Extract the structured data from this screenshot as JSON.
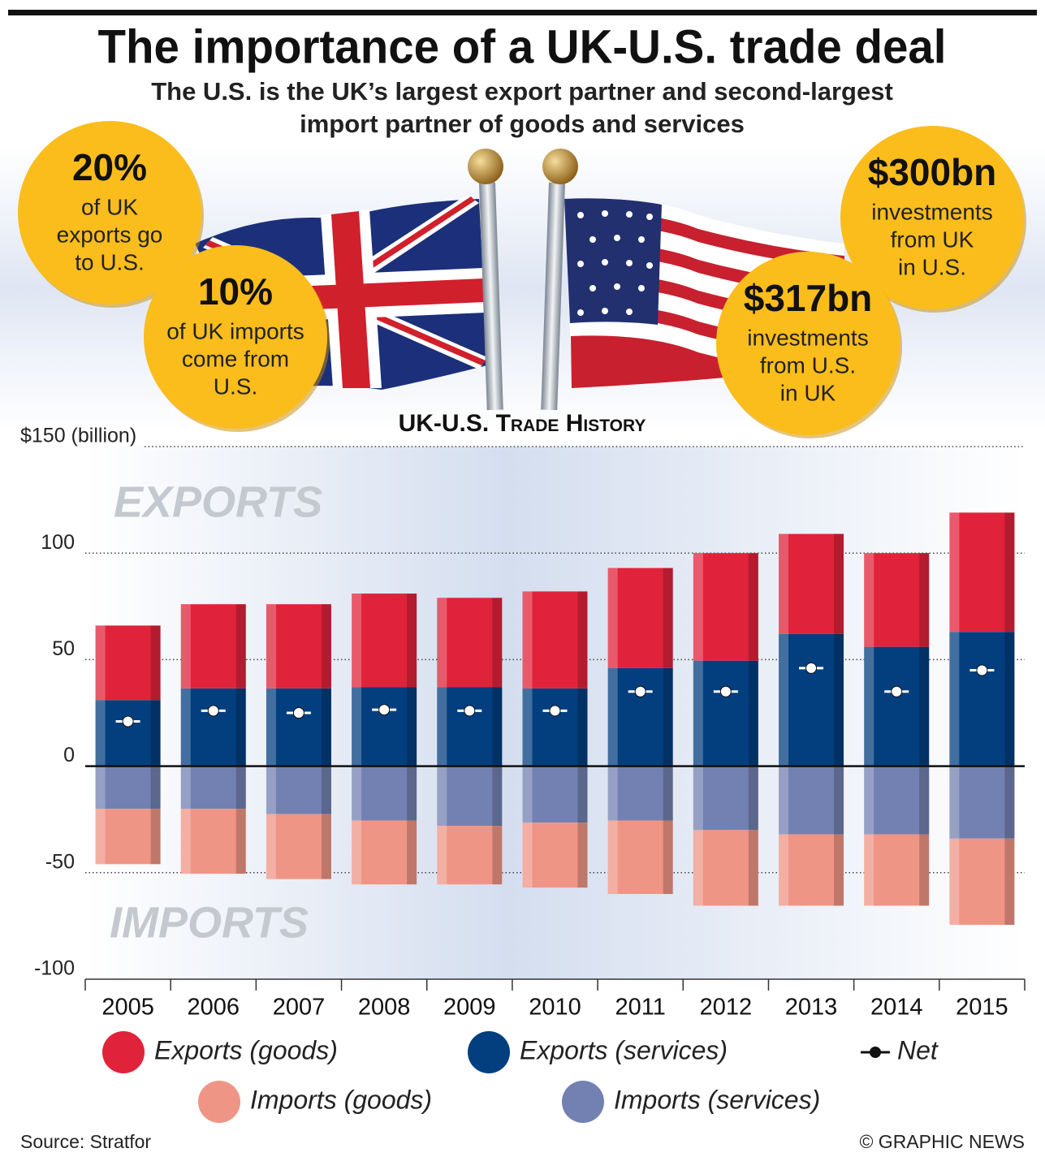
{
  "header": {
    "title": "The importance of a UK-U.S. trade deal",
    "subtitle": [
      "The U.S. is the UK’s largest export partner and second-largest",
      "import partner of goods and services"
    ]
  },
  "callouts": [
    {
      "value": "20%",
      "lines": [
        "of UK",
        "exports go",
        "to U.S."
      ]
    },
    {
      "value": "10%",
      "lines": [
        "of UK imports",
        "come from",
        "U.S."
      ]
    },
    {
      "value": "$300bn",
      "lines": [
        "investments",
        "from UK",
        "in U.S."
      ]
    },
    {
      "value": "$317bn",
      "lines": [
        "investments",
        "from U.S.",
        "in UK"
      ]
    }
  ],
  "chart_data": {
    "type": "bar",
    "title": "UK-U.S. Trade History",
    "annotations": [
      "EXPORTS",
      "IMPORTS"
    ],
    "categories": [
      "2005",
      "2006",
      "2007",
      "2008",
      "2009",
      "2010",
      "2011",
      "2012",
      "2013",
      "2014",
      "2015"
    ],
    "series": [
      {
        "name": "Exports (goods)",
        "color": "#e0233a",
        "type": "bar",
        "values": [
          35,
          39.5,
          39.5,
          44,
          42,
          45.5,
          47,
          50.5,
          47,
          44,
          56
        ]
      },
      {
        "name": "Exports (services)",
        "color": "#033f7f",
        "type": "bar",
        "values": [
          31,
          36.5,
          36.5,
          37,
          37,
          36.5,
          46,
          49.5,
          62,
          56,
          63
        ]
      },
      {
        "name": "Net",
        "color": "#111111",
        "type": "marker",
        "values": [
          21,
          26,
          25,
          26.5,
          26,
          26,
          35,
          35,
          46,
          35,
          45
        ]
      },
      {
        "name": "Imports (goods)",
        "color": "#ef9585",
        "type": "bar",
        "values": [
          -26,
          -30.5,
          -30.5,
          -30,
          -27.5,
          -30.5,
          -34.5,
          -35.5,
          -33.5,
          -33.5,
          -40.5
        ]
      },
      {
        "name": "Imports (services)",
        "color": "#7281b1",
        "type": "bar",
        "values": [
          -20,
          -20,
          -22.5,
          -25.5,
          -28,
          -26.5,
          -25.5,
          -30,
          -32,
          -32,
          -34
        ]
      }
    ],
    "ylim": [
      -100,
      150
    ],
    "yticks": [
      -100,
      -50,
      0,
      50,
      100,
      {
        "value": 150,
        "label": "$150 (billion)"
      }
    ],
    "grid": true
  },
  "footer": {
    "source": "Source: Stratfor",
    "credit": "© GRAPHIC NEWS"
  }
}
